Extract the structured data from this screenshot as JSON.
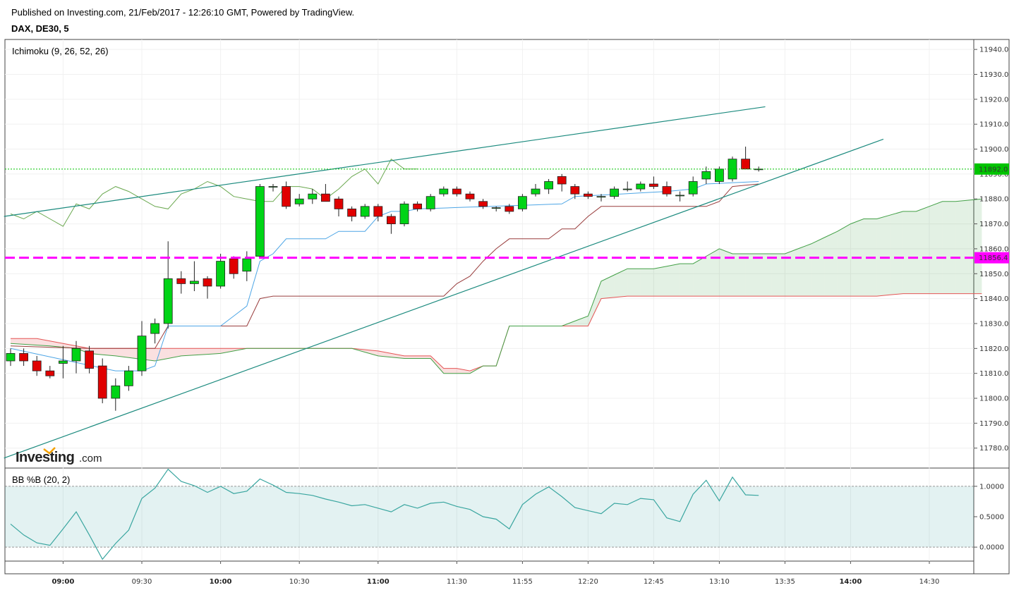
{
  "header": {
    "published": "Published on Investing.com, 21/Feb/2017 - 12:26:10 GMT, Powered by TradingView.",
    "symbol": "DAX, DE30, 5"
  },
  "logo": {
    "brand": "Investing",
    "suffix": ".com"
  },
  "colors": {
    "up": "#00d416",
    "down": "#e00000",
    "tenkan": "#4ea6e6",
    "kijun": "#993d3d",
    "chikou": "#6aa84f",
    "span_a": "#43a047",
    "span_b": "#e45555",
    "trend": "#1b8a7e",
    "support": "#ff00ff",
    "last_price": "#00c400"
  },
  "chart_data": [
    {
      "type": "candlestick",
      "title": "",
      "indicator_label": "Ichimoku (9, 26, 52, 26)",
      "ylim": [
        11772,
        11944
      ],
      "y_ticks": [
        11780,
        11790,
        11800,
        11810,
        11820,
        11830,
        11840,
        11850,
        11860,
        11870,
        11880,
        11890,
        11900,
        11910,
        11920,
        11930,
        11940
      ],
      "y_tick_labels": [
        "11780.0",
        "11790.0",
        "11800.0",
        "11810.0",
        "11820.0",
        "11830.0",
        "11840.0",
        "11850.0",
        "11860.0",
        "11870.0",
        "11880.0",
        "11890.0",
        "11900.0",
        "11910.0",
        "11920.0",
        "11930.0",
        "11940.0"
      ],
      "x_ticks": [
        "09:00",
        "09:30",
        "10:00",
        "10:30",
        "11:00",
        "11:30",
        "11:55",
        "12:20",
        "12:45",
        "13:10",
        "13:35",
        "14:00",
        "14:30"
      ],
      "x_ticks_bold": [
        "09:00",
        "10:00",
        "11:00",
        "14:00"
      ],
      "last_price": 11892.0,
      "last_price_label": "11892.0",
      "support_level": 11856.4,
      "support_label": "11856.4",
      "candles": [
        {
          "o": 11815,
          "h": 11820,
          "l": 11813,
          "c": 11818
        },
        {
          "o": 11818,
          "h": 11820,
          "l": 11813,
          "c": 11815
        },
        {
          "o": 11815,
          "h": 11817,
          "l": 11809,
          "c": 11811
        },
        {
          "o": 11811,
          "h": 11813,
          "l": 11808,
          "c": 11809
        },
        {
          "o": 11814,
          "h": 11821,
          "l": 11808,
          "c": 11815
        },
        {
          "o": 11815,
          "h": 11823,
          "l": 11810,
          "c": 11820
        },
        {
          "o": 11819,
          "h": 11821,
          "l": 11810,
          "c": 11812
        },
        {
          "o": 11813,
          "h": 11816,
          "l": 11798,
          "c": 11800
        },
        {
          "o": 11800,
          "h": 11808,
          "l": 11795,
          "c": 11805
        },
        {
          "o": 11805,
          "h": 11813,
          "l": 11803,
          "c": 11811
        },
        {
          "o": 11811,
          "h": 11831,
          "l": 11809,
          "c": 11825
        },
        {
          "o": 11826,
          "h": 11832,
          "l": 11822,
          "c": 11830
        },
        {
          "o": 11830,
          "h": 11863,
          "l": 11828,
          "c": 11848
        },
        {
          "o": 11848,
          "h": 11851,
          "l": 11842,
          "c": 11846
        },
        {
          "o": 11846,
          "h": 11855,
          "l": 11843,
          "c": 11847
        },
        {
          "o": 11848,
          "h": 11849,
          "l": 11840,
          "c": 11845
        },
        {
          "o": 11845,
          "h": 11858,
          "l": 11844,
          "c": 11855
        },
        {
          "o": 11856,
          "h": 11857,
          "l": 11848,
          "c": 11850
        },
        {
          "o": 11851,
          "h": 11859,
          "l": 11847,
          "c": 11856
        },
        {
          "o": 11857,
          "h": 11886,
          "l": 11856,
          "c": 11885
        },
        {
          "o": 11885,
          "h": 11886,
          "l": 11883,
          "c": 11885
        },
        {
          "o": 11885,
          "h": 11887,
          "l": 11876,
          "c": 11877
        },
        {
          "o": 11878,
          "h": 11882,
          "l": 11877,
          "c": 11880
        },
        {
          "o": 11880,
          "h": 11884,
          "l": 11878,
          "c": 11882
        },
        {
          "o": 11882,
          "h": 11886,
          "l": 11879,
          "c": 11879
        },
        {
          "o": 11880,
          "h": 11881,
          "l": 11873,
          "c": 11876
        },
        {
          "o": 11876,
          "h": 11877,
          "l": 11871,
          "c": 11873
        },
        {
          "o": 11873,
          "h": 11878,
          "l": 11872,
          "c": 11877
        },
        {
          "o": 11877,
          "h": 11878,
          "l": 11871,
          "c": 11873
        },
        {
          "o": 11873,
          "h": 11874,
          "l": 11866,
          "c": 11870
        },
        {
          "o": 11870,
          "h": 11879,
          "l": 11869,
          "c": 11878
        },
        {
          "o": 11878,
          "h": 11879,
          "l": 11875,
          "c": 11876
        },
        {
          "o": 11876,
          "h": 11882,
          "l": 11875,
          "c": 11881
        },
        {
          "o": 11882,
          "h": 11885,
          "l": 11881,
          "c": 11884
        },
        {
          "o": 11884,
          "h": 11885,
          "l": 11881,
          "c": 11882
        },
        {
          "o": 11882,
          "h": 11883,
          "l": 11879,
          "c": 11880
        },
        {
          "o": 11879,
          "h": 11880,
          "l": 11876,
          "c": 11877
        },
        {
          "o": 11876.5,
          "h": 11877,
          "l": 11875,
          "c": 11876.5
        },
        {
          "o": 11877,
          "h": 11878,
          "l": 11874,
          "c": 11875
        },
        {
          "o": 11876,
          "h": 11882,
          "l": 11875,
          "c": 11881
        },
        {
          "o": 11882,
          "h": 11886,
          "l": 11881,
          "c": 11884
        },
        {
          "o": 11884,
          "h": 11888,
          "l": 11882,
          "c": 11887
        },
        {
          "o": 11889,
          "h": 11890,
          "l": 11883,
          "c": 11886
        },
        {
          "o": 11885,
          "h": 11886,
          "l": 11880,
          "c": 11882
        },
        {
          "o": 11882,
          "h": 11883,
          "l": 11880,
          "c": 11881
        },
        {
          "o": 11881,
          "h": 11882,
          "l": 11879,
          "c": 11881
        },
        {
          "o": 11881,
          "h": 11885,
          "l": 11880,
          "c": 11884
        },
        {
          "o": 11884,
          "h": 11887,
          "l": 11883,
          "c": 11884
        },
        {
          "o": 11884,
          "h": 11887,
          "l": 11883,
          "c": 11886
        },
        {
          "o": 11886,
          "h": 11889,
          "l": 11884,
          "c": 11885
        },
        {
          "o": 11885,
          "h": 11887,
          "l": 11881,
          "c": 11882
        },
        {
          "o": 11881.5,
          "h": 11883,
          "l": 11879,
          "c": 11881.5
        },
        {
          "o": 11882,
          "h": 11889,
          "l": 11881,
          "c": 11887
        },
        {
          "o": 11888,
          "h": 11893,
          "l": 11886,
          "c": 11891
        },
        {
          "o": 11887,
          "h": 11893,
          "l": 11886,
          "c": 11892
        },
        {
          "o": 11888,
          "h": 11897,
          "l": 11887,
          "c": 11896
        },
        {
          "o": 11896,
          "h": 11901,
          "l": 11892,
          "c": 11892
        },
        {
          "o": 11892,
          "h": 11893,
          "l": 11891,
          "c": 11892
        }
      ],
      "tenkan": [
        [
          0,
          11820
        ],
        [
          8,
          11811
        ],
        [
          10,
          11811
        ],
        [
          11,
          11813
        ],
        [
          12,
          11829
        ],
        [
          16,
          11829
        ],
        [
          18,
          11837
        ],
        [
          19,
          11855
        ],
        [
          20,
          11858
        ],
        [
          21,
          11864
        ],
        [
          24,
          11864
        ],
        [
          25,
          11867
        ],
        [
          27,
          11867
        ],
        [
          28,
          11873
        ],
        [
          29,
          11875
        ],
        [
          30,
          11875
        ],
        [
          31,
          11876
        ],
        [
          42,
          11878
        ],
        [
          43,
          11881
        ],
        [
          50,
          11883
        ],
        [
          52,
          11884
        ],
        [
          53,
          11886
        ],
        [
          57,
          11887
        ]
      ],
      "kijun": [
        [
          0,
          11821
        ],
        [
          6,
          11820
        ],
        [
          11,
          11820
        ],
        [
          12,
          11829
        ],
        [
          18,
          11829
        ],
        [
          19,
          11840
        ],
        [
          20,
          11841
        ],
        [
          33,
          11841
        ],
        [
          34,
          11846
        ],
        [
          35,
          11849
        ],
        [
          36,
          11855
        ],
        [
          37,
          11860
        ],
        [
          38,
          11864
        ],
        [
          41,
          11864
        ],
        [
          42,
          11868
        ],
        [
          43,
          11868
        ],
        [
          44,
          11873
        ],
        [
          45,
          11877
        ],
        [
          53,
          11877
        ],
        [
          54,
          11879
        ],
        [
          55,
          11885
        ],
        [
          57,
          11886
        ]
      ],
      "chikou": [
        [
          0,
          11874
        ],
        [
          1,
          11872
        ],
        [
          2,
          11875
        ],
        [
          3,
          11872
        ],
        [
          4,
          11869
        ],
        [
          5,
          11878
        ],
        [
          6,
          11876
        ],
        [
          7,
          11882
        ],
        [
          8,
          11885
        ],
        [
          9,
          11883
        ],
        [
          10,
          11880
        ],
        [
          11,
          11877
        ],
        [
          12,
          11876
        ],
        [
          13,
          11882
        ],
        [
          14,
          11884
        ],
        [
          15,
          11887
        ],
        [
          16,
          11885
        ],
        [
          17,
          11881
        ],
        [
          18,
          11880
        ],
        [
          19,
          11879
        ],
        [
          20,
          11879
        ],
        [
          21,
          11885
        ],
        [
          22,
          11885
        ],
        [
          23,
          11884
        ],
        [
          24,
          11880
        ],
        [
          25,
          11884
        ],
        [
          26,
          11889
        ],
        [
          27,
          11892
        ],
        [
          28,
          11886
        ],
        [
          29,
          11896
        ],
        [
          30,
          11892
        ],
        [
          31,
          11892
        ]
      ],
      "span_a": [
        [
          0,
          11822
        ],
        [
          3,
          11821
        ],
        [
          5,
          11820
        ],
        [
          6,
          11818
        ],
        [
          8,
          11817
        ],
        [
          11,
          11815
        ],
        [
          13,
          11817
        ],
        [
          16,
          11818
        ],
        [
          18,
          11820
        ],
        [
          20,
          11820
        ],
        [
          26,
          11820
        ],
        [
          28,
          11817
        ],
        [
          30,
          11816
        ],
        [
          32,
          11816
        ],
        [
          33,
          11810
        ],
        [
          35,
          11810
        ],
        [
          36,
          11813
        ],
        [
          37,
          11813
        ],
        [
          38,
          11829
        ],
        [
          42,
          11829
        ],
        [
          44,
          11833
        ],
        [
          45,
          11847
        ],
        [
          47,
          11852
        ],
        [
          49,
          11852
        ],
        [
          51,
          11854
        ],
        [
          52,
          11854
        ],
        [
          54,
          11860
        ],
        [
          55,
          11858
        ],
        [
          59,
          11858
        ],
        [
          61,
          11862
        ],
        [
          63,
          11867
        ],
        [
          64,
          11870
        ],
        [
          65,
          11872
        ],
        [
          66,
          11872
        ],
        [
          68,
          11875
        ],
        [
          69,
          11875
        ],
        [
          71,
          11879
        ],
        [
          72,
          11879
        ],
        [
          74,
          11880
        ]
      ],
      "span_b": [
        [
          0,
          11824
        ],
        [
          2,
          11824
        ],
        [
          4,
          11822
        ],
        [
          6,
          11820
        ],
        [
          19,
          11820
        ],
        [
          26,
          11820
        ],
        [
          28,
          11819
        ],
        [
          30,
          11817
        ],
        [
          32,
          11817
        ],
        [
          33,
          11812
        ],
        [
          34,
          11812
        ],
        [
          35,
          11811
        ],
        [
          36,
          11813
        ],
        [
          37,
          11813
        ],
        [
          38,
          11829
        ],
        [
          44,
          11829
        ],
        [
          45,
          11840
        ],
        [
          47,
          11841
        ],
        [
          66,
          11841
        ],
        [
          68,
          11842
        ],
        [
          74,
          11842
        ]
      ],
      "trendlines": [
        {
          "x0": -0.5,
          "y0": 11873,
          "x1": 57.5,
          "y1": 11917
        },
        {
          "x0": -0.5,
          "y0": 11776,
          "x1": 66.5,
          "y1": 11904
        }
      ]
    },
    {
      "type": "line",
      "indicator_label": "BB %B (20, 2)",
      "ylim": [
        -0.23,
        1.3
      ],
      "y_ticks": [
        0,
        0.5,
        1.0
      ],
      "y_tick_labels": [
        "0.0000",
        "0.5000",
        "1.0000"
      ],
      "band": [
        0,
        1
      ],
      "x": [
        0,
        1,
        2,
        3,
        4,
        5,
        6,
        7,
        8,
        9,
        10,
        11,
        12,
        13,
        14,
        15,
        16,
        17,
        18,
        19,
        20,
        21,
        22,
        23,
        24,
        25,
        26,
        27,
        28,
        29,
        30,
        31,
        32,
        33,
        34,
        35,
        36,
        37,
        38,
        39,
        40,
        41,
        42,
        43,
        44,
        45,
        46,
        47,
        48,
        49,
        50,
        51,
        52,
        53,
        54,
        55,
        56,
        57
      ],
      "values": [
        0.38,
        0.2,
        0.07,
        0.03,
        0.3,
        0.58,
        0.2,
        -0.2,
        0.06,
        0.28,
        0.8,
        0.97,
        1.28,
        1.08,
        1.01,
        0.9,
        1.0,
        0.88,
        0.92,
        1.12,
        1.02,
        0.9,
        0.88,
        0.85,
        0.79,
        0.74,
        0.68,
        0.7,
        0.64,
        0.58,
        0.7,
        0.64,
        0.72,
        0.74,
        0.67,
        0.62,
        0.5,
        0.46,
        0.3,
        0.7,
        0.87,
        0.99,
        0.83,
        0.65,
        0.6,
        0.55,
        0.72,
        0.7,
        0.8,
        0.78,
        0.48,
        0.42,
        0.87,
        1.1,
        0.76,
        1.15,
        0.86,
        0.85
      ]
    }
  ]
}
